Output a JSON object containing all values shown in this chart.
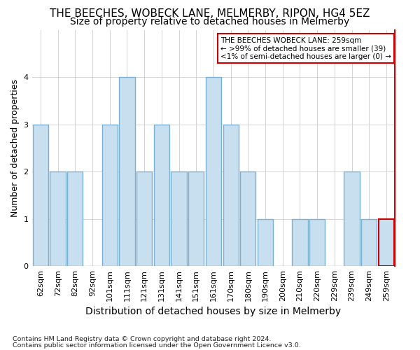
{
  "title": "THE BEECHES, WOBECK LANE, MELMERBY, RIPON, HG4 5EZ",
  "subtitle": "Size of property relative to detached houses in Melmerby",
  "xlabel": "Distribution of detached houses by size in Melmerby",
  "ylabel": "Number of detached properties",
  "categories": [
    "62sqm",
    "72sqm",
    "82sqm",
    "92sqm",
    "101sqm",
    "111sqm",
    "121sqm",
    "131sqm",
    "141sqm",
    "151sqm",
    "161sqm",
    "170sqm",
    "180sqm",
    "190sqm",
    "200sqm",
    "210sqm",
    "220sqm",
    "229sqm",
    "239sqm",
    "249sqm",
    "259sqm"
  ],
  "values": [
    3,
    2,
    2,
    0,
    3,
    4,
    2,
    3,
    2,
    2,
    4,
    3,
    2,
    1,
    0,
    1,
    1,
    0,
    2,
    1,
    1
  ],
  "bar_color": "#c8dff0",
  "bar_edge_color": "#7ab0d4",
  "highlight_index": 20,
  "highlight_bar_edge_color": "#cc0000",
  "annotation_text": "THE BEECHES WOBECK LANE: 259sqm\n← >99% of detached houses are smaller (39)\n<1% of semi-detached houses are larger (0) →",
  "annotation_box_edge_color": "#cc0000",
  "ylim": [
    0,
    5
  ],
  "yticks": [
    0,
    1,
    2,
    3,
    4
  ],
  "footnote1": "Contains HM Land Registry data © Crown copyright and database right 2024.",
  "footnote2": "Contains public sector information licensed under the Open Government Licence v3.0.",
  "background_color": "#ffffff",
  "title_fontsize": 11,
  "subtitle_fontsize": 10,
  "tick_fontsize": 8,
  "ylabel_fontsize": 9,
  "xlabel_fontsize": 10
}
